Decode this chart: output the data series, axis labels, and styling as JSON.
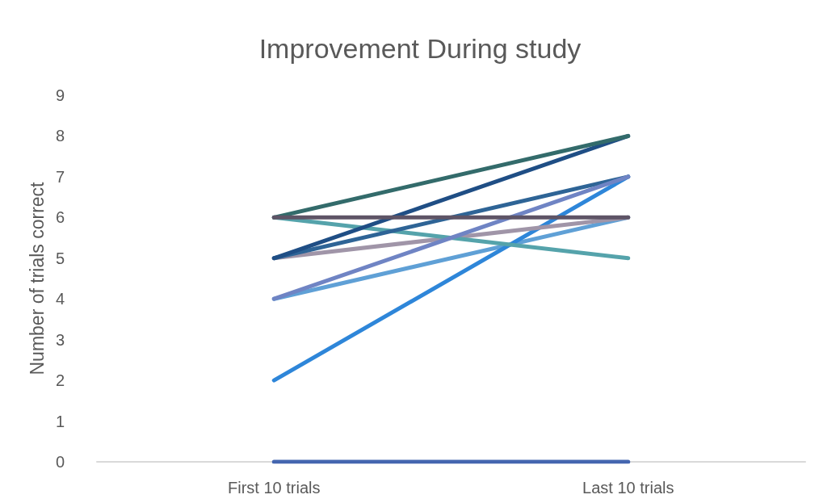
{
  "chart_data": {
    "type": "line",
    "title": "Improvement During study",
    "ylabel": "Number of trials correct",
    "categories": [
      "First 10 trials",
      "Last 10 trials"
    ],
    "ylim": [
      0,
      9
    ],
    "yticks": [
      0,
      1,
      2,
      3,
      4,
      5,
      6,
      7,
      8,
      9
    ],
    "grid": false,
    "marker": "none",
    "line_style": "solid",
    "series": [
      {
        "color": "#4466b0",
        "values": [
          0,
          0
        ]
      },
      {
        "color": "#5fa0d6",
        "values": [
          4,
          6
        ]
      },
      {
        "color": "#2e86d9",
        "values": [
          2,
          7
        ]
      },
      {
        "color": "#a095a8",
        "values": [
          5,
          6
        ]
      },
      {
        "color": "#55a3ab",
        "values": [
          6,
          5
        ]
      },
      {
        "color": "#2e6496",
        "values": [
          5,
          7
        ]
      },
      {
        "color": "#6f84c4",
        "values": [
          4,
          7
        ]
      },
      {
        "color": "#1f4e85",
        "values": [
          5,
          8
        ]
      },
      {
        "color": "#336b6b",
        "values": [
          6,
          8
        ]
      },
      {
        "color": "#5e5466",
        "values": [
          6,
          6
        ]
      }
    ]
  }
}
